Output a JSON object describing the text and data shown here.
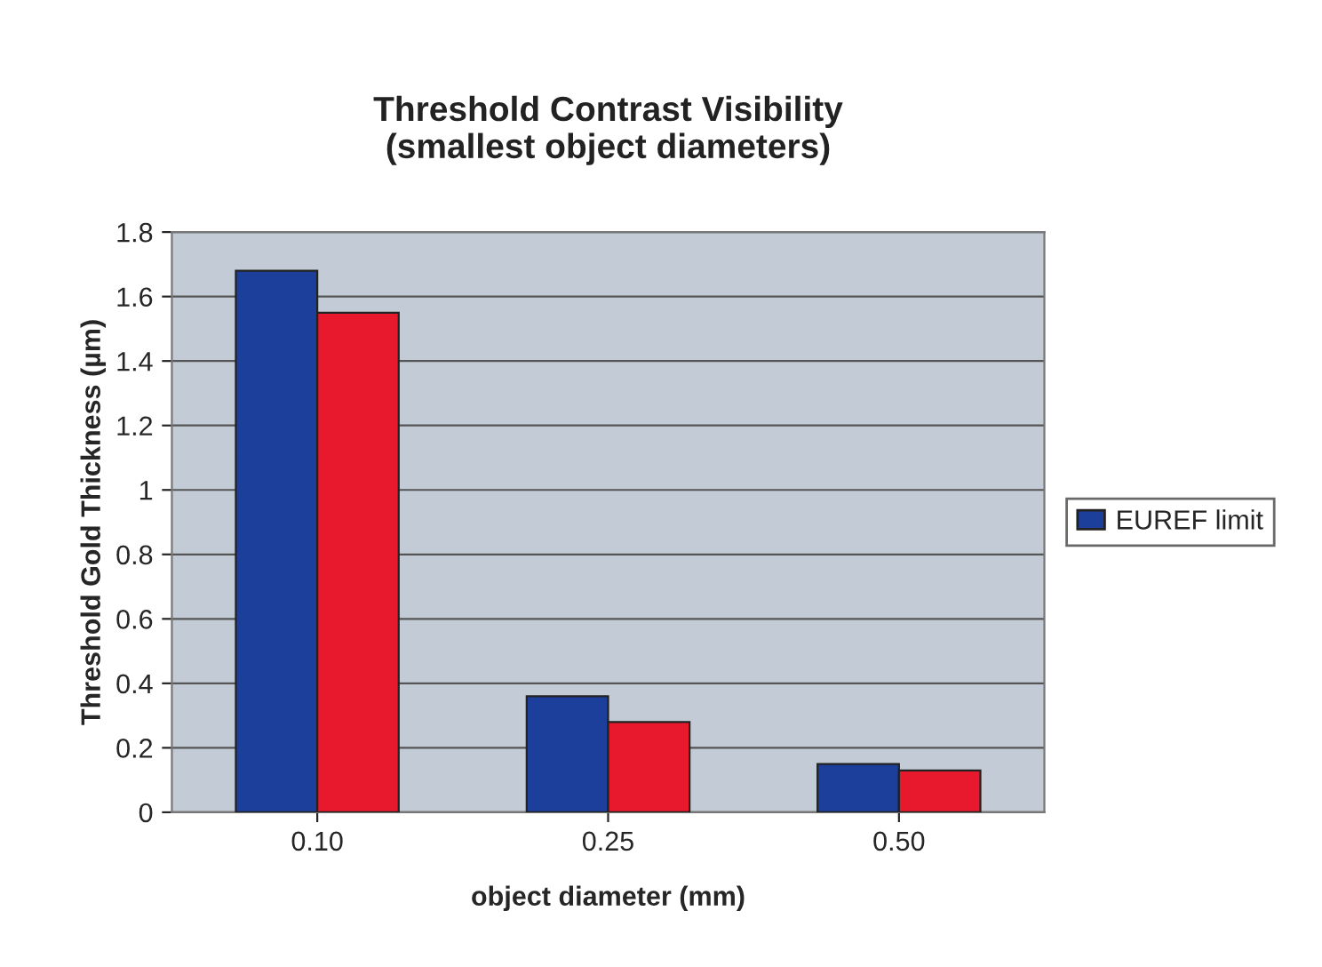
{
  "chart_data": {
    "type": "bar",
    "title": "Threshold Contrast Visibility\n(smallest object diameters)",
    "xlabel": "object diameter (mm)",
    "ylabel": "Threshold Gold Thickness (µm)",
    "categories": [
      "0.10",
      "0.25",
      "0.50"
    ],
    "series": [
      {
        "name": "EUREF limit",
        "color": "#1c3f9c",
        "values": [
          1.68,
          0.36,
          0.15
        ]
      },
      {
        "color": "#e8192c",
        "values": [
          1.55,
          0.28,
          0.13
        ]
      }
    ],
    "ylim": [
      0,
      1.8
    ],
    "yticks": [
      0,
      0.2,
      0.4,
      0.6,
      0.8,
      1,
      1.2,
      1.4,
      1.6,
      1.8
    ],
    "grid": "y",
    "legend": "right"
  }
}
